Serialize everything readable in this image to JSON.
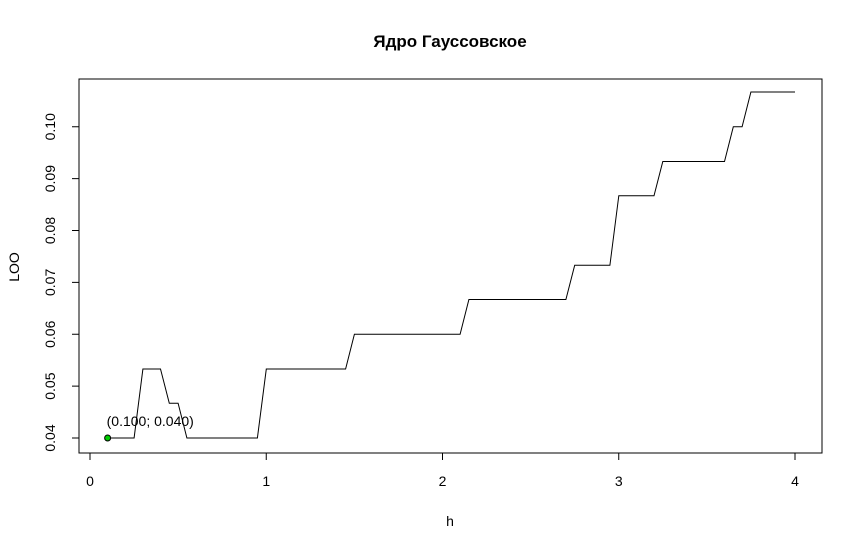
{
  "chart_data": {
    "type": "line",
    "title": "Ядро Гауссовское",
    "xlabel": "h",
    "ylabel": "LOO",
    "xlim": [
      0,
      4
    ],
    "ylim": [
      0.04,
      0.1067
    ],
    "x_ticks": [
      "0",
      "1",
      "2",
      "3",
      "4"
    ],
    "y_ticks": [
      "0.04",
      "0.05",
      "0.06",
      "0.07",
      "0.08",
      "0.09",
      "0.10"
    ],
    "line_color": "#000000",
    "series": [
      {
        "x": [
          0.1,
          0.25,
          0.3,
          0.4,
          0.45,
          0.5,
          0.55,
          0.95,
          1.0,
          1.45,
          1.5,
          2.1,
          2.15,
          2.7,
          2.75,
          2.95,
          3.0,
          3.2,
          3.25,
          3.6,
          3.65,
          3.7,
          3.75,
          4.0
        ],
        "y": [
          0.04,
          0.04,
          0.0533,
          0.0533,
          0.0467,
          0.0467,
          0.04,
          0.04,
          0.0533,
          0.0533,
          0.06,
          0.06,
          0.0667,
          0.0667,
          0.0733,
          0.0733,
          0.0867,
          0.0867,
          0.0933,
          0.0933,
          0.1,
          0.1,
          0.1067,
          0.1067
        ]
      }
    ],
    "highlight_point": {
      "x": 0.1,
      "y": 0.04,
      "label": "(0.100; 0.040)",
      "fill_color": "#00cc00",
      "stroke_color": "#000000"
    }
  }
}
